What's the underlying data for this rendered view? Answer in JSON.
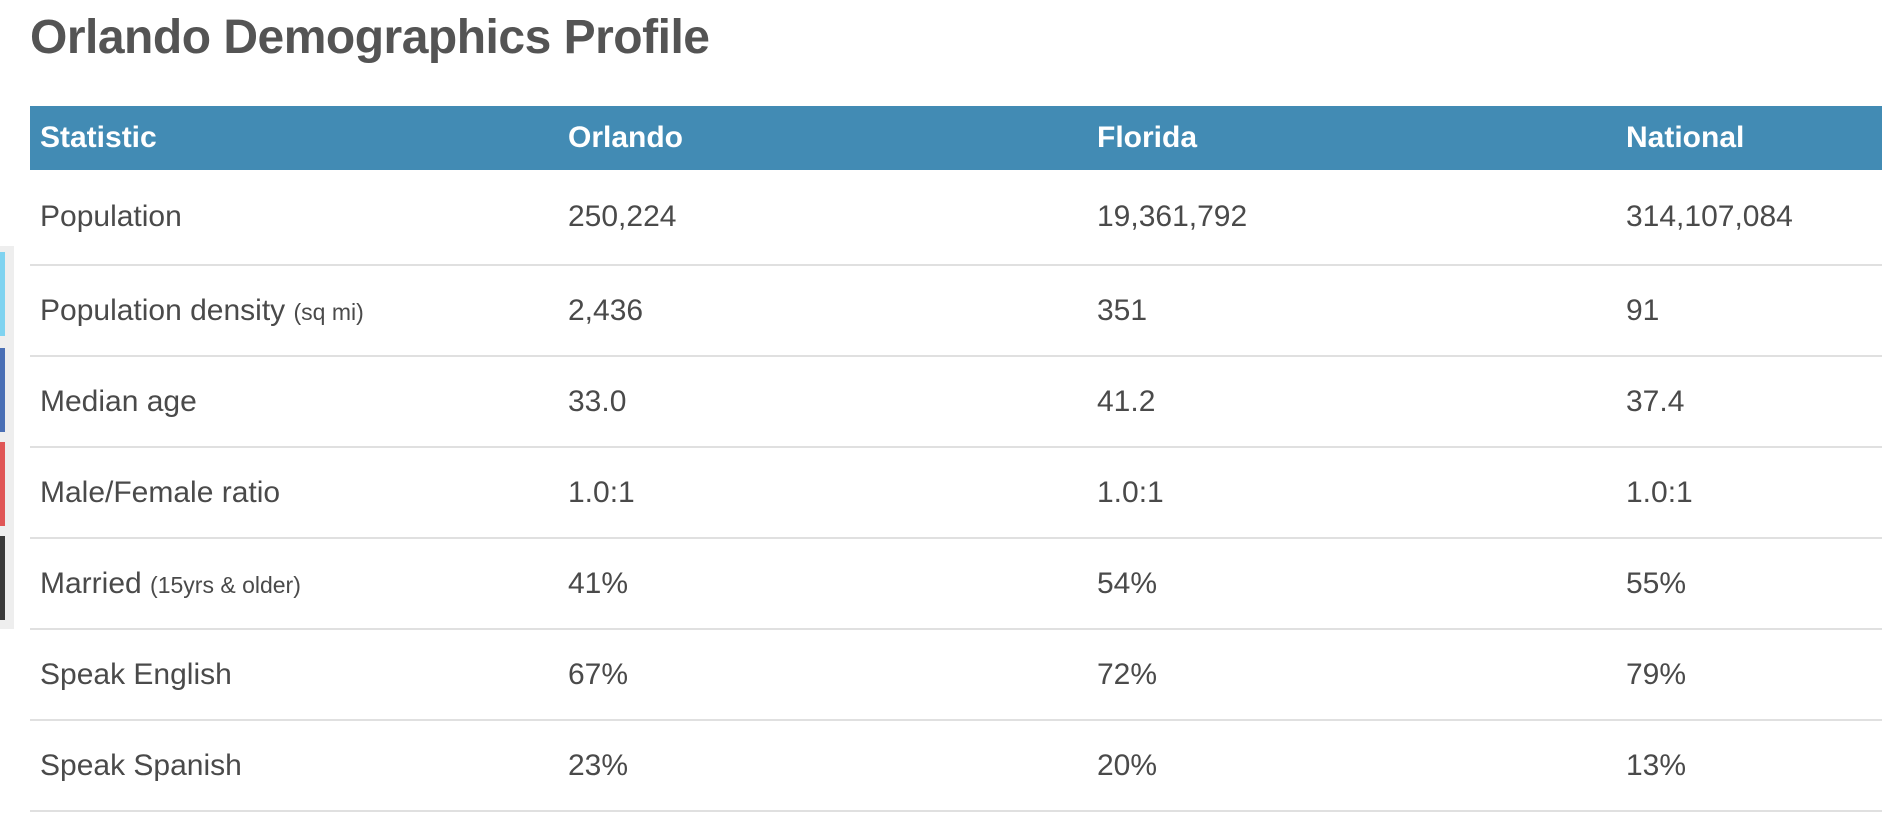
{
  "page": {
    "title": "Orlando Demographics Profile"
  },
  "share_bar": {
    "colors": [
      "#7fd3f0",
      "#4a6fb5",
      "#e05656",
      "#3a3a3a"
    ]
  },
  "table": {
    "header_color": "#428bb4",
    "headers": [
      "Statistic",
      "Orlando",
      "Florida",
      "National"
    ],
    "rows": [
      {
        "statistic": "Population",
        "note": "",
        "orlando": "250,224",
        "florida": "19,361,792",
        "national": "314,107,084"
      },
      {
        "statistic": "Population density",
        "note": "(sq mi)",
        "orlando": "2,436",
        "florida": "351",
        "national": "91"
      },
      {
        "statistic": "Median age",
        "note": "",
        "orlando": "33.0",
        "florida": "41.2",
        "national": "37.4"
      },
      {
        "statistic": "Male/Female ratio",
        "note": "",
        "orlando": "1.0:1",
        "florida": "1.0:1",
        "national": "1.0:1"
      },
      {
        "statistic": "Married",
        "note": "(15yrs & older)",
        "orlando": "41%",
        "florida": "54%",
        "national": "55%"
      },
      {
        "statistic": "Speak English",
        "note": "",
        "orlando": "67%",
        "florida": "72%",
        "national": "79%"
      },
      {
        "statistic": "Speak Spanish",
        "note": "",
        "orlando": "23%",
        "florida": "20%",
        "national": "13%"
      }
    ]
  }
}
